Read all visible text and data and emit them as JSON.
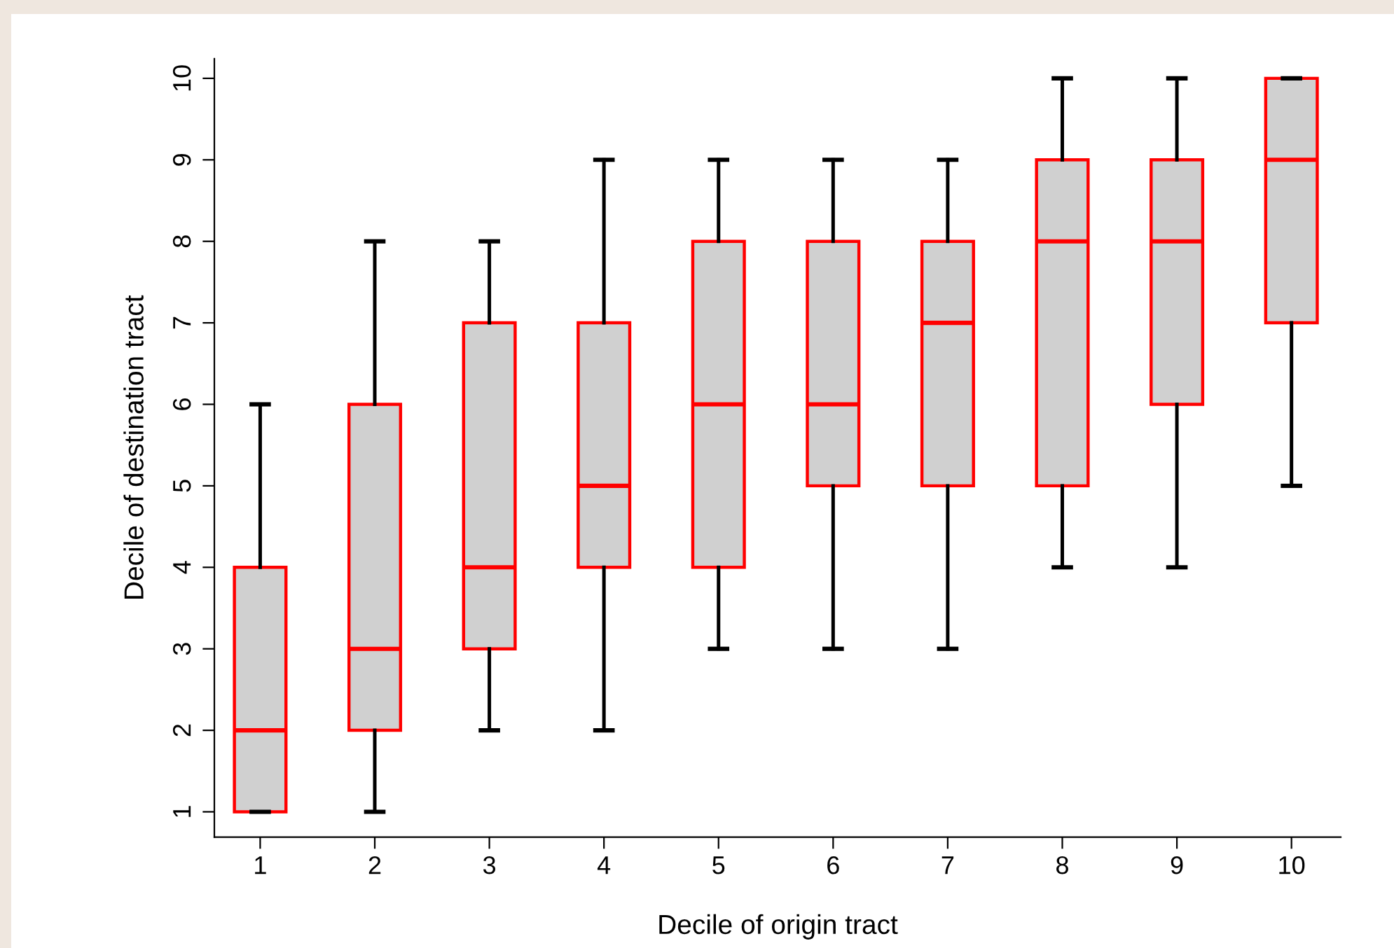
{
  "chart_data": {
    "type": "box",
    "xlabel": "Decile of origin tract",
    "ylabel": "Decile of destination tract",
    "categories": [
      "1",
      "2",
      "3",
      "4",
      "5",
      "6",
      "7",
      "8",
      "9",
      "10"
    ],
    "boxes": [
      {
        "low": 1,
        "q1": 1,
        "median": 2,
        "q3": 4,
        "high": 6
      },
      {
        "low": 1,
        "q1": 2,
        "median": 3,
        "q3": 6,
        "high": 8
      },
      {
        "low": 2,
        "q1": 3,
        "median": 4,
        "q3": 7,
        "high": 8
      },
      {
        "low": 2,
        "q1": 4,
        "median": 5,
        "q3": 7,
        "high": 9
      },
      {
        "low": 3,
        "q1": 4,
        "median": 6,
        "q3": 8,
        "high": 9
      },
      {
        "low": 3,
        "q1": 5,
        "median": 6,
        "q3": 8,
        "high": 9
      },
      {
        "low": 3,
        "q1": 5,
        "median": 7,
        "q3": 8,
        "high": 9
      },
      {
        "low": 4,
        "q1": 5,
        "median": 8,
        "q3": 9,
        "high": 10
      },
      {
        "low": 4,
        "q1": 6,
        "median": 8,
        "q3": 9,
        "high": 10
      },
      {
        "low": 5,
        "q1": 7,
        "median": 9,
        "q3": 10,
        "high": 10
      }
    ],
    "color": "#ff0000",
    "ylim": [
      0.69,
      10.24
    ],
    "yticks": [
      1,
      2,
      3,
      4,
      5,
      6,
      7,
      8,
      9,
      10
    ],
    "grid": false,
    "legend": false
  }
}
